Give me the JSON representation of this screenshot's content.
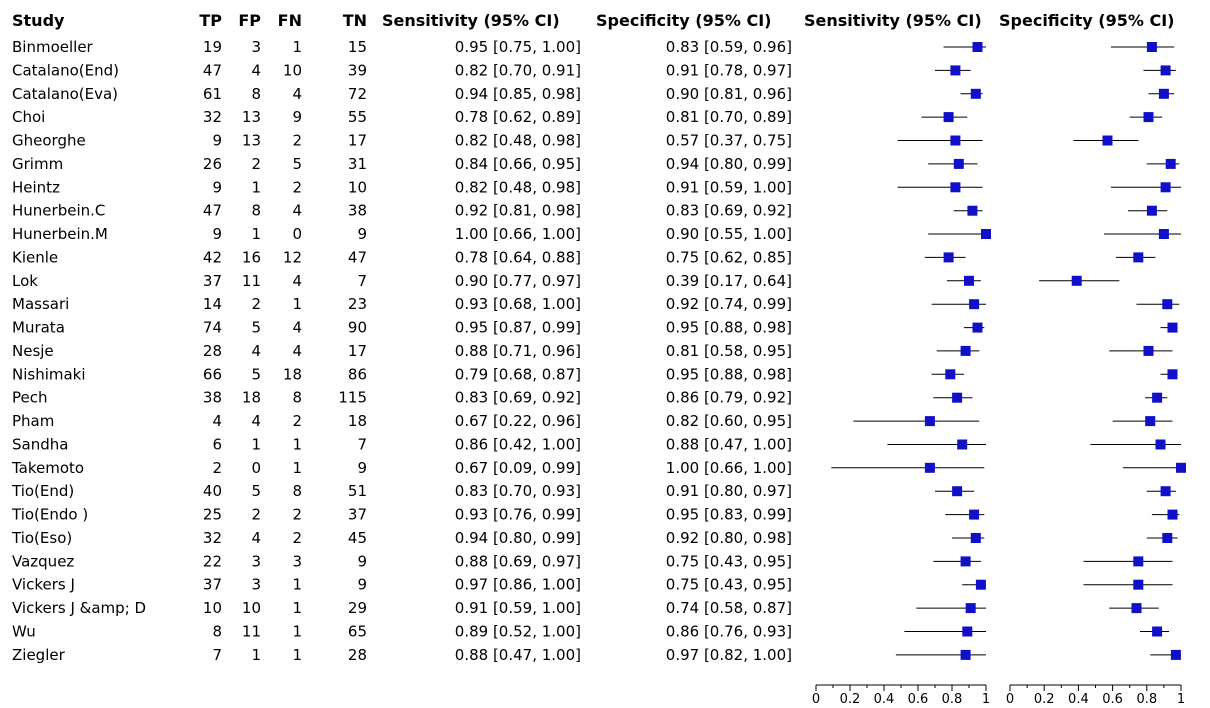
{
  "columns": {
    "study": "Study",
    "tp": "TP",
    "fp": "FP",
    "fn": "FN",
    "tn": "TN",
    "sens_ci": "Sensitivity (95% CI)",
    "spec_ci": "Specificity (95% CI)",
    "sens_plot": "Sensitivity (95% CI)",
    "spec_plot": "Specificity (95% CI)"
  },
  "colors": {
    "marker": "#1010c8",
    "line": "#000000"
  },
  "chart_data": [
    {
      "type": "table",
      "rows": [
        {
          "study": "Binmoeller",
          "tp": "19",
          "fp": "3",
          "fn": "1",
          "tn": "15",
          "sens_text": "0.95 [0.75, 1.00]",
          "spec_text": "0.83 [0.59, 0.96]"
        },
        {
          "study": "Catalano(End)",
          "tp": "47",
          "fp": "4",
          "fn": "10",
          "tn": "39",
          "sens_text": "0.82 [0.70, 0.91]",
          "spec_text": "0.91 [0.78, 0.97]"
        },
        {
          "study": "Catalano(Eva)",
          "tp": "61",
          "fp": "8",
          "fn": "4",
          "tn": "72",
          "sens_text": "0.94 [0.85, 0.98]",
          "spec_text": "0.90 [0.81, 0.96]"
        },
        {
          "study": "Choi",
          "tp": "32",
          "fp": "13",
          "fn": "9",
          "tn": "55",
          "sens_text": "0.78 [0.62, 0.89]",
          "spec_text": "0.81 [0.70, 0.89]"
        },
        {
          "study": "Gheorghe",
          "tp": "9",
          "fp": "13",
          "fn": "2",
          "tn": "17",
          "sens_text": "0.82 [0.48, 0.98]",
          "spec_text": "0.57 [0.37, 0.75]"
        },
        {
          "study": "Grimm",
          "tp": "26",
          "fp": "2",
          "fn": "5",
          "tn": "31",
          "sens_text": "0.84 [0.66, 0.95]",
          "spec_text": "0.94 [0.80, 0.99]"
        },
        {
          "study": "Heintz",
          "tp": "9",
          "fp": "1",
          "fn": "2",
          "tn": "10",
          "sens_text": "0.82 [0.48, 0.98]",
          "spec_text": "0.91 [0.59, 1.00]"
        },
        {
          "study": "Hunerbein.C",
          "tp": "47",
          "fp": "8",
          "fn": "4",
          "tn": "38",
          "sens_text": "0.92 [0.81, 0.98]",
          "spec_text": "0.83 [0.69, 0.92]"
        },
        {
          "study": "Hunerbein.M",
          "tp": "9",
          "fp": "1",
          "fn": "0",
          "tn": "9",
          "sens_text": "1.00 [0.66, 1.00]",
          "spec_text": "0.90 [0.55, 1.00]"
        },
        {
          "study": "Kienle",
          "tp": "42",
          "fp": "16",
          "fn": "12",
          "tn": "47",
          "sens_text": "0.78 [0.64, 0.88]",
          "spec_text": "0.75 [0.62, 0.85]"
        },
        {
          "study": "Lok",
          "tp": "37",
          "fp": "11",
          "fn": "4",
          "tn": "7",
          "sens_text": "0.90 [0.77, 0.97]",
          "spec_text": "0.39 [0.17, 0.64]"
        },
        {
          "study": "Massari",
          "tp": "14",
          "fp": "2",
          "fn": "1",
          "tn": "23",
          "sens_text": "0.93 [0.68, 1.00]",
          "spec_text": "0.92 [0.74, 0.99]"
        },
        {
          "study": "Murata",
          "tp": "74",
          "fp": "5",
          "fn": "4",
          "tn": "90",
          "sens_text": "0.95 [0.87, 0.99]",
          "spec_text": "0.95 [0.88, 0.98]"
        },
        {
          "study": "Nesje",
          "tp": "28",
          "fp": "4",
          "fn": "4",
          "tn": "17",
          "sens_text": "0.88 [0.71, 0.96]",
          "spec_text": "0.81 [0.58, 0.95]"
        },
        {
          "study": "Nishimaki",
          "tp": "66",
          "fp": "5",
          "fn": "18",
          "tn": "86",
          "sens_text": "0.79 [0.68, 0.87]",
          "spec_text": "0.95 [0.88, 0.98]"
        },
        {
          "study": "Pech",
          "tp": "38",
          "fp": "18",
          "fn": "8",
          "tn": "115",
          "sens_text": "0.83 [0.69, 0.92]",
          "spec_text": "0.86 [0.79, 0.92]"
        },
        {
          "study": "Pham",
          "tp": "4",
          "fp": "4",
          "fn": "2",
          "tn": "18",
          "sens_text": "0.67 [0.22, 0.96]",
          "spec_text": "0.82 [0.60, 0.95]"
        },
        {
          "study": "Sandha",
          "tp": "6",
          "fp": "1",
          "fn": "1",
          "tn": "7",
          "sens_text": "0.86 [0.42, 1.00]",
          "spec_text": "0.88 [0.47, 1.00]"
        },
        {
          "study": "Takemoto",
          "tp": "2",
          "fp": "0",
          "fn": "1",
          "tn": "9",
          "sens_text": "0.67 [0.09, 0.99]",
          "spec_text": "1.00 [0.66, 1.00]"
        },
        {
          "study": "Tio(End)",
          "tp": "40",
          "fp": "5",
          "fn": "8",
          "tn": "51",
          "sens_text": "0.83 [0.70, 0.93]",
          "spec_text": "0.91 [0.80, 0.97]"
        },
        {
          "study": "Tio(Endo )",
          "tp": "25",
          "fp": "2",
          "fn": "2",
          "tn": "37",
          "sens_text": "0.93 [0.76, 0.99]",
          "spec_text": "0.95 [0.83, 0.99]"
        },
        {
          "study": "Tio(Eso)",
          "tp": "32",
          "fp": "4",
          "fn": "2",
          "tn": "45",
          "sens_text": "0.94 [0.80, 0.99]",
          "spec_text": "0.92 [0.80, 0.98]"
        },
        {
          "study": "Vazquez",
          "tp": "22",
          "fp": "3",
          "fn": "3",
          "tn": "9",
          "sens_text": "0.88 [0.69, 0.97]",
          "spec_text": "0.75 [0.43, 0.95]"
        },
        {
          "study": "Vickers J",
          "tp": "37",
          "fp": "3",
          "fn": "1",
          "tn": "9",
          "sens_text": "0.97 [0.86, 1.00]",
          "spec_text": "0.75 [0.43, 0.95]"
        },
        {
          "study": "Vickers J &amp; D",
          "tp": "10",
          "fp": "10",
          "fn": "1",
          "tn": "29",
          "sens_text": "0.91 [0.59, 1.00]",
          "spec_text": "0.74 [0.58, 0.87]"
        },
        {
          "study": "Wu",
          "tp": "8",
          "fp": "11",
          "fn": "1",
          "tn": "65",
          "sens_text": "0.89 [0.52, 1.00]",
          "spec_text": "0.86 [0.76, 0.93]"
        },
        {
          "study": "Ziegler",
          "tp": "7",
          "fp": "1",
          "fn": "1",
          "tn": "28",
          "sens_text": "0.88 [0.47, 1.00]",
          "spec_text": "0.97 [0.82, 1.00]"
        }
      ]
    },
    {
      "type": "scatter",
      "title": "Sensitivity (95% CI)",
      "xlim": [
        0,
        1
      ],
      "ticks": [
        "0",
        "0.2",
        "0.4",
        "0.6",
        "0.8",
        "1"
      ],
      "point": [
        0.95,
        0.82,
        0.94,
        0.78,
        0.82,
        0.84,
        0.82,
        0.92,
        1.0,
        0.78,
        0.9,
        0.93,
        0.95,
        0.88,
        0.79,
        0.83,
        0.67,
        0.86,
        0.67,
        0.83,
        0.93,
        0.94,
        0.88,
        0.97,
        0.91,
        0.89,
        0.88
      ],
      "lower": [
        0.75,
        0.7,
        0.85,
        0.62,
        0.48,
        0.66,
        0.48,
        0.81,
        0.66,
        0.64,
        0.77,
        0.68,
        0.87,
        0.71,
        0.68,
        0.69,
        0.22,
        0.42,
        0.09,
        0.7,
        0.76,
        0.8,
        0.69,
        0.86,
        0.59,
        0.52,
        0.47
      ],
      "upper": [
        1.0,
        0.91,
        0.98,
        0.89,
        0.98,
        0.95,
        0.98,
        0.98,
        1.0,
        0.88,
        0.97,
        1.0,
        0.99,
        0.96,
        0.87,
        0.92,
        0.96,
        1.0,
        0.99,
        0.93,
        0.99,
        0.99,
        0.97,
        1.0,
        1.0,
        1.0,
        1.0
      ]
    },
    {
      "type": "scatter",
      "title": "Specificity (95% CI)",
      "xlim": [
        0,
        1
      ],
      "ticks": [
        "0",
        "0.2",
        "0.4",
        "0.6",
        "0.8",
        "1"
      ],
      "point": [
        0.83,
        0.91,
        0.9,
        0.81,
        0.57,
        0.94,
        0.91,
        0.83,
        0.9,
        0.75,
        0.39,
        0.92,
        0.95,
        0.81,
        0.95,
        0.86,
        0.82,
        0.88,
        1.0,
        0.91,
        0.95,
        0.92,
        0.75,
        0.75,
        0.74,
        0.86,
        0.97
      ],
      "lower": [
        0.59,
        0.78,
        0.81,
        0.7,
        0.37,
        0.8,
        0.59,
        0.69,
        0.55,
        0.62,
        0.17,
        0.74,
        0.88,
        0.58,
        0.88,
        0.79,
        0.6,
        0.47,
        0.66,
        0.8,
        0.83,
        0.8,
        0.43,
        0.43,
        0.58,
        0.76,
        0.82
      ],
      "upper": [
        0.96,
        0.97,
        0.96,
        0.89,
        0.75,
        0.99,
        1.0,
        0.92,
        1.0,
        0.85,
        0.64,
        0.99,
        0.98,
        0.95,
        0.98,
        0.92,
        0.95,
        1.0,
        1.0,
        0.97,
        0.99,
        0.98,
        0.95,
        0.95,
        0.87,
        0.93,
        1.0
      ]
    }
  ]
}
